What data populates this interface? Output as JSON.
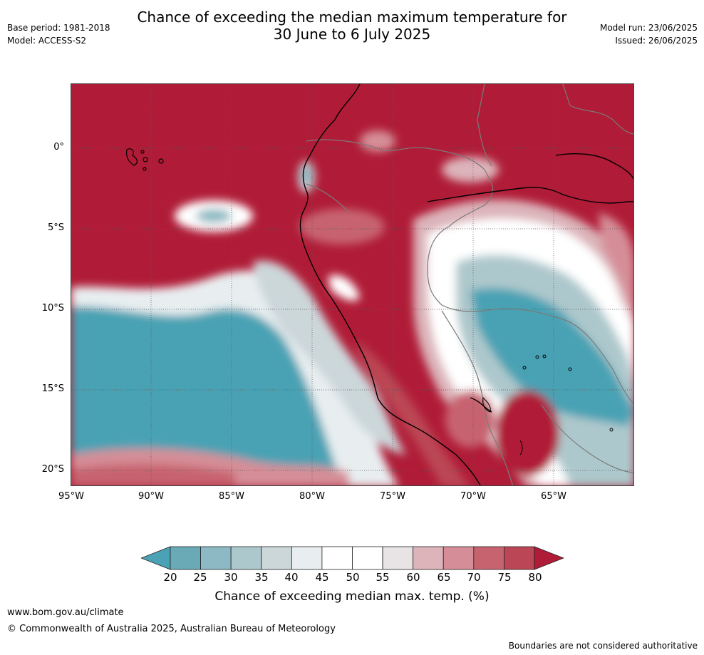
{
  "title_line1": "Chance of exceeding the median maximum temperature for",
  "title_line2": "30 June to 6 July 2025",
  "meta_left": {
    "base_period": "Base period: 1981-2018",
    "model": "Model: ACCESS-S2"
  },
  "meta_right": {
    "model_run": "Model run: 23/06/2025",
    "issued": "Issued: 26/06/2025"
  },
  "map": {
    "lat_labels": [
      "0°",
      "5°S",
      "10°S",
      "15°S",
      "20°S"
    ],
    "lon_labels": [
      "95°W",
      "90°W",
      "85°W",
      "80°W",
      "75°W",
      "70°W",
      "65°W"
    ]
  },
  "colorbar": {
    "ticks": [
      "20",
      "25",
      "30",
      "35",
      "40",
      "45",
      "50",
      "55",
      "60",
      "65",
      "70",
      "75",
      "80"
    ],
    "colors": [
      "#4aa2b4",
      "#6aaab7",
      "#8cb9c3",
      "#adc8cc",
      "#ccd7da",
      "#e8eef0",
      "#ffffff",
      "#ffffff",
      "#e8e4e5",
      "#dcb4ba",
      "#d58e97",
      "#c7636f",
      "#bb4655",
      "#b01c37"
    ],
    "title": "Chance of exceeding median max. temp. (%)"
  },
  "footer": {
    "url": "www.bom.gov.au/climate",
    "copyright": "© Commonwealth of Australia 2025, Australian Bureau of Meteorology",
    "note": "Boundaries are not considered authoritative"
  }
}
